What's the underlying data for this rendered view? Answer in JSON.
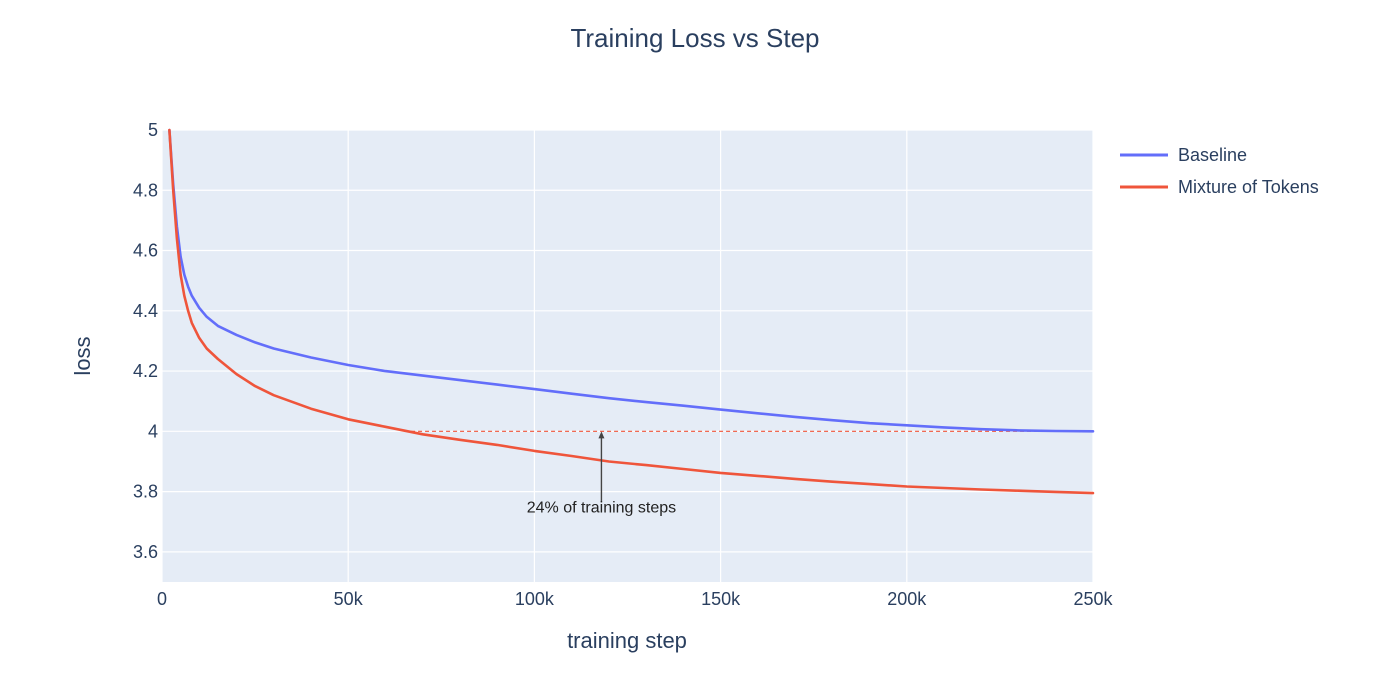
{
  "chart_data": {
    "type": "line",
    "title": "Training Loss vs Step",
    "xlabel": "training step",
    "ylabel": "loss",
    "xlim": [
      0,
      250000
    ],
    "ylim": [
      3.5,
      5.0
    ],
    "x_ticks": [
      {
        "value": 0,
        "label": "0"
      },
      {
        "value": 50000,
        "label": "50k"
      },
      {
        "value": 100000,
        "label": "100k"
      },
      {
        "value": 150000,
        "label": "150k"
      },
      {
        "value": 200000,
        "label": "200k"
      },
      {
        "value": 250000,
        "label": "250k"
      }
    ],
    "y_ticks": [
      {
        "value": 3.6,
        "label": "3.6"
      },
      {
        "value": 3.8,
        "label": "3.8"
      },
      {
        "value": 4.0,
        "label": "4"
      },
      {
        "value": 4.2,
        "label": "4.2"
      },
      {
        "value": 4.4,
        "label": "4.4"
      },
      {
        "value": 4.6,
        "label": "4.6"
      },
      {
        "value": 4.8,
        "label": "4.8"
      },
      {
        "value": 5.0,
        "label": "5"
      }
    ],
    "grid": true,
    "legend_position": "top-right",
    "series": [
      {
        "name": "Baseline",
        "color": "#636efa",
        "x": [
          2000,
          3000,
          4000,
          5000,
          6000,
          7000,
          8000,
          10000,
          12000,
          15000,
          20000,
          25000,
          30000,
          40000,
          50000,
          60000,
          70000,
          80000,
          90000,
          100000,
          110000,
          120000,
          130000,
          140000,
          150000,
          160000,
          170000,
          180000,
          190000,
          200000,
          210000,
          220000,
          230000,
          240000,
          250000
        ],
        "y": [
          5.0,
          4.82,
          4.68,
          4.58,
          4.52,
          4.48,
          4.45,
          4.41,
          4.38,
          4.35,
          4.32,
          4.295,
          4.275,
          4.245,
          4.22,
          4.2,
          4.185,
          4.17,
          4.155,
          4.14,
          4.125,
          4.11,
          4.097,
          4.085,
          4.072,
          4.06,
          4.048,
          4.037,
          4.027,
          4.02,
          4.013,
          4.007,
          4.003,
          4.001,
          4.0
        ]
      },
      {
        "name": "Mixture of Tokens",
        "color": "#ef553b",
        "x": [
          2000,
          3000,
          4000,
          5000,
          6000,
          7000,
          8000,
          10000,
          12000,
          15000,
          20000,
          25000,
          30000,
          40000,
          50000,
          60000,
          70000,
          80000,
          90000,
          100000,
          110000,
          120000,
          130000,
          140000,
          150000,
          160000,
          170000,
          180000,
          190000,
          200000,
          210000,
          220000,
          230000,
          240000,
          250000
        ],
        "y": [
          5.0,
          4.8,
          4.64,
          4.52,
          4.45,
          4.4,
          4.36,
          4.31,
          4.275,
          4.24,
          4.19,
          4.15,
          4.12,
          4.075,
          4.04,
          4.015,
          3.99,
          3.972,
          3.955,
          3.935,
          3.918,
          3.9,
          3.888,
          3.875,
          3.862,
          3.852,
          3.842,
          3.833,
          3.825,
          3.817,
          3.812,
          3.807,
          3.803,
          3.799,
          3.795
        ]
      }
    ],
    "reference_line": {
      "y": 4.0,
      "x_start": 65000,
      "x_end": 250000,
      "color": "#ef553b"
    },
    "annotation": {
      "text": "24% of training steps",
      "x": 118000,
      "y": 4.0,
      "label_y": 3.76
    }
  }
}
